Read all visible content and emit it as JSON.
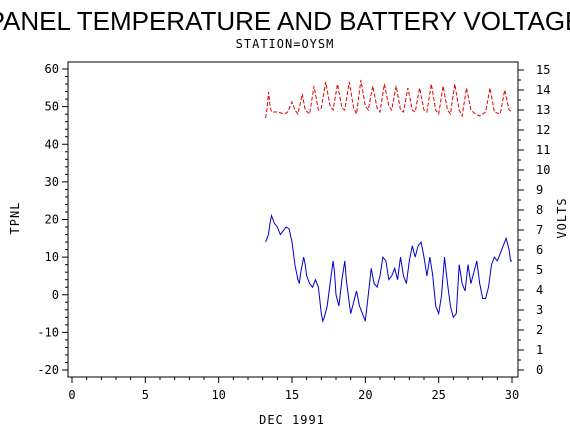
{
  "chart_data": {
    "type": "line",
    "title": "PANEL TEMPERATURE AND BATTERY VOLTAGE",
    "subtitle": "STATION=OYSM",
    "xlabel": "DEC 1991",
    "ylabel_left": "TPNL",
    "ylabel_right": "VOLTS",
    "xlim": [
      0,
      30
    ],
    "ylim_left": [
      -20,
      60
    ],
    "ylim_right": [
      0,
      15
    ],
    "x_ticks": [
      0,
      5,
      10,
      15,
      20,
      25,
      30
    ],
    "y_left_ticks": [
      -20,
      -10,
      0,
      10,
      20,
      30,
      40,
      50,
      60
    ],
    "y_right_ticks": [
      0,
      1,
      2,
      3,
      4,
      5,
      6,
      7,
      8,
      9,
      10,
      11,
      12,
      13,
      14,
      15
    ],
    "grid": false,
    "series": [
      {
        "name": "",
        "axis": "left",
        "color": "#0000cc",
        "style": "solid",
        "points": [
          [
            13.2,
            14
          ],
          [
            13.4,
            16
          ],
          [
            13.5,
            19
          ],
          [
            13.6,
            21
          ],
          [
            13.8,
            19
          ],
          [
            14.0,
            18
          ],
          [
            14.2,
            16
          ],
          [
            14.4,
            17
          ],
          [
            14.6,
            18
          ],
          [
            14.8,
            17.5
          ],
          [
            15.0,
            14
          ],
          [
            15.1,
            11
          ],
          [
            15.2,
            8
          ],
          [
            15.4,
            4
          ],
          [
            15.5,
            3
          ],
          [
            15.6,
            6
          ],
          [
            15.8,
            10
          ],
          [
            15.9,
            8
          ],
          [
            16.0,
            5
          ],
          [
            16.2,
            3
          ],
          [
            16.4,
            2
          ],
          [
            16.6,
            4
          ],
          [
            16.8,
            2
          ],
          [
            17.0,
            -5
          ],
          [
            17.1,
            -7
          ],
          [
            17.2,
            -6
          ],
          [
            17.4,
            -3
          ],
          [
            17.6,
            3
          ],
          [
            17.8,
            9
          ],
          [
            17.9,
            6
          ],
          [
            18.0,
            0
          ],
          [
            18.2,
            -3
          ],
          [
            18.4,
            4
          ],
          [
            18.6,
            9
          ],
          [
            18.7,
            4
          ],
          [
            18.9,
            -2
          ],
          [
            19.0,
            -5
          ],
          [
            19.2,
            -2
          ],
          [
            19.4,
            1
          ],
          [
            19.6,
            -3
          ],
          [
            19.8,
            -5
          ],
          [
            20.0,
            -7
          ],
          [
            20.2,
            0
          ],
          [
            20.4,
            7
          ],
          [
            20.6,
            3
          ],
          [
            20.8,
            2
          ],
          [
            21.0,
            5
          ],
          [
            21.2,
            10
          ],
          [
            21.4,
            9
          ],
          [
            21.6,
            4
          ],
          [
            21.8,
            5
          ],
          [
            22.0,
            7
          ],
          [
            22.2,
            4
          ],
          [
            22.4,
            10
          ],
          [
            22.6,
            5
          ],
          [
            22.8,
            3
          ],
          [
            23.0,
            9
          ],
          [
            23.2,
            13
          ],
          [
            23.4,
            10
          ],
          [
            23.6,
            13
          ],
          [
            23.8,
            14
          ],
          [
            24.0,
            10
          ],
          [
            24.2,
            5
          ],
          [
            24.4,
            10
          ],
          [
            24.6,
            5
          ],
          [
            24.8,
            -3
          ],
          [
            25.0,
            -5
          ],
          [
            25.2,
            0
          ],
          [
            25.4,
            10
          ],
          [
            25.6,
            3
          ],
          [
            25.8,
            -3
          ],
          [
            26.0,
            -6
          ],
          [
            26.2,
            -5
          ],
          [
            26.4,
            8
          ],
          [
            26.6,
            3
          ],
          [
            26.8,
            1
          ],
          [
            27.0,
            8
          ],
          [
            27.2,
            3
          ],
          [
            27.4,
            6
          ],
          [
            27.6,
            9
          ],
          [
            27.8,
            3
          ],
          [
            28.0,
            -1
          ],
          [
            28.2,
            -1
          ],
          [
            28.4,
            2
          ],
          [
            28.6,
            8
          ],
          [
            28.8,
            10
          ],
          [
            29.0,
            9
          ],
          [
            29.2,
            11
          ],
          [
            29.4,
            13
          ],
          [
            29.6,
            15
          ],
          [
            29.8,
            12
          ],
          [
            29.9,
            9
          ],
          [
            30.0,
            9
          ]
        ]
      },
      {
        "name": "",
        "axis": "right",
        "color": "#dd0000",
        "style": "dashed",
        "points": [
          [
            13.2,
            12.6
          ],
          [
            13.3,
            13.1
          ],
          [
            13.4,
            13.9
          ],
          [
            13.5,
            13.2
          ],
          [
            13.6,
            12.9
          ],
          [
            14.0,
            12.9
          ],
          [
            14.5,
            12.8
          ],
          [
            14.7,
            12.9
          ],
          [
            15.0,
            13.4
          ],
          [
            15.2,
            13.0
          ],
          [
            15.4,
            12.8
          ],
          [
            15.7,
            13.8
          ],
          [
            15.9,
            13.0
          ],
          [
            16.2,
            12.8
          ],
          [
            16.5,
            14.2
          ],
          [
            16.8,
            13.0
          ],
          [
            17.0,
            13.1
          ],
          [
            17.3,
            14.4
          ],
          [
            17.6,
            13.2
          ],
          [
            17.8,
            13.0
          ],
          [
            18.1,
            14.3
          ],
          [
            18.4,
            13.1
          ],
          [
            18.6,
            13.0
          ],
          [
            18.9,
            14.4
          ],
          [
            19.2,
            13.1
          ],
          [
            19.4,
            12.8
          ],
          [
            19.7,
            14.5
          ],
          [
            20.0,
            13.2
          ],
          [
            20.2,
            13.0
          ],
          [
            20.5,
            14.2
          ],
          [
            20.8,
            13.1
          ],
          [
            21.0,
            12.9
          ],
          [
            21.3,
            14.3
          ],
          [
            21.6,
            13.2
          ],
          [
            21.8,
            13.0
          ],
          [
            22.1,
            14.2
          ],
          [
            22.4,
            13.0
          ],
          [
            22.6,
            12.9
          ],
          [
            22.9,
            14.1
          ],
          [
            23.2,
            13.0
          ],
          [
            23.4,
            12.9
          ],
          [
            23.7,
            14.1
          ],
          [
            24.0,
            13.0
          ],
          [
            24.2,
            12.9
          ],
          [
            24.5,
            14.3
          ],
          [
            24.8,
            13.0
          ],
          [
            25.0,
            12.8
          ],
          [
            25.3,
            14.2
          ],
          [
            25.6,
            13.0
          ],
          [
            25.8,
            12.8
          ],
          [
            26.1,
            14.3
          ],
          [
            26.4,
            13.0
          ],
          [
            26.6,
            12.7
          ],
          [
            26.9,
            14.1
          ],
          [
            27.2,
            13.0
          ],
          [
            27.5,
            12.8
          ],
          [
            27.8,
            12.7
          ],
          [
            28.2,
            12.9
          ],
          [
            28.5,
            14.1
          ],
          [
            28.8,
            12.9
          ],
          [
            29.2,
            12.8
          ],
          [
            29.5,
            14.0
          ],
          [
            29.8,
            13.0
          ],
          [
            30.0,
            12.9
          ]
        ]
      }
    ]
  }
}
